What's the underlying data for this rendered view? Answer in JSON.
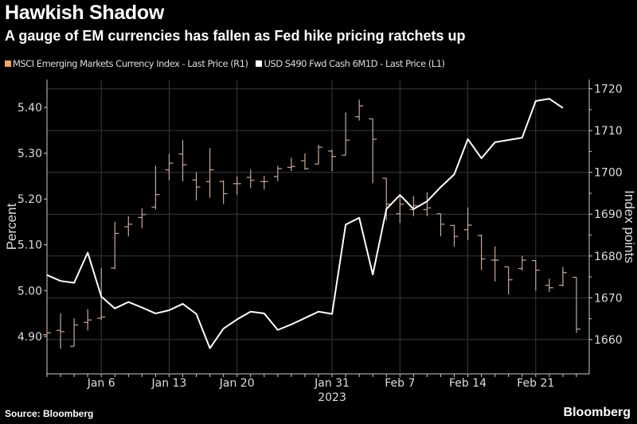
{
  "title": "Hawkish Shadow",
  "subtitle": "A gauge of EM currencies has fallen as Fed hike pricing ratchets up",
  "source": "Source: Bloomberg",
  "logo": "Bloomberg",
  "chart_data": {
    "type": "line",
    "xlabel": "2023",
    "x": [
      "Jan 2",
      "Jan 3",
      "Jan 4",
      "Jan 5",
      "Jan 6",
      "Jan 9",
      "Jan 10",
      "Jan 11",
      "Jan 12",
      "Jan 13",
      "Jan 16",
      "Jan 17",
      "Jan 18",
      "Jan 19",
      "Jan 20",
      "Jan 23",
      "Jan 24",
      "Jan 25",
      "Jan 26",
      "Jan 27",
      "Jan 30",
      "Jan 31",
      "Feb 1",
      "Feb 2",
      "Feb 3",
      "Feb 6",
      "Feb 7",
      "Feb 8",
      "Feb 9",
      "Feb 10",
      "Feb 13",
      "Feb 14",
      "Feb 15",
      "Feb 16",
      "Feb 17",
      "Feb 20",
      "Feb 21",
      "Feb 22",
      "Feb 23",
      "Feb 24"
    ],
    "x_tick_labels": [
      "Jan 6",
      "Jan 13",
      "Jan 20",
      "Jan 31",
      "Feb 7",
      "Feb 14",
      "Feb 21"
    ],
    "grid": true,
    "legend_placement": "top-left",
    "left_axis": {
      "label": "Percent",
      "ylim": [
        4.818,
        5.461
      ],
      "ticks": [
        "4.90",
        "5.00",
        "5.10",
        "5.20",
        "5.30",
        "5.40"
      ]
    },
    "right_axis": {
      "label": "Index points",
      "ylim": [
        1651.8,
        1722.2
      ],
      "ticks": [
        "1660",
        "1670",
        "1680",
        "1690",
        "1700",
        "1710",
        "1720"
      ]
    },
    "series": [
      {
        "name": "USD S490 Fwd Cash 6M1D - Last Price (L1)",
        "type": "line",
        "axis": "left",
        "color": "#ffffff",
        "values": [
          5.034,
          5.021,
          5.017,
          5.083,
          4.987,
          4.961,
          4.975,
          4.963,
          4.95,
          4.957,
          4.971,
          4.949,
          4.874,
          4.917,
          4.937,
          4.954,
          4.95,
          4.914,
          4.926,
          4.94,
          4.954,
          4.949,
          5.144,
          5.159,
          5.035,
          5.178,
          5.209,
          5.178,
          5.195,
          5.226,
          5.254,
          5.331,
          5.289,
          5.324,
          5.329,
          5.334,
          5.414,
          5.419,
          5.399,
          null
        ]
      },
      {
        "name": "MSCI Emerging Markets Currency Index - Last Price (R1)",
        "type": "ohlc",
        "axis": "right",
        "color": "#f0a860",
        "bar_color": "#c9a89a",
        "ohlc": [
          [
            1661.2,
            1665.7,
            1660.9,
            1661.6
          ],
          [
            1662.2,
            1666.3,
            1657.8,
            1661.9
          ],
          [
            1658.4,
            1665.1,
            1658.4,
            1663.5
          ],
          [
            1664.1,
            1667.3,
            1662.2,
            1664.7
          ],
          [
            1665.1,
            1677.1,
            1664.7,
            1665.4
          ],
          [
            1677.1,
            1688.2,
            1676.8,
            1685.4
          ],
          [
            1687.0,
            1689.5,
            1684.7,
            1687.6
          ],
          [
            1689.2,
            1691.4,
            1686.6,
            1689.9
          ],
          [
            1691.7,
            1701.6,
            1691.1,
            1694.7
          ],
          [
            1700.6,
            1704.4,
            1698.1,
            1702.2
          ],
          [
            1704.4,
            1707.7,
            1697.8,
            1701.8
          ],
          [
            1698.2,
            1700.0,
            1693.3,
            1696.5
          ],
          [
            1697.8,
            1705.8,
            1693.9,
            1700.6
          ],
          [
            1697.8,
            1698.1,
            1692.4,
            1694.9
          ],
          [
            1697.3,
            1699.0,
            1694.7,
            1697.3
          ],
          [
            1698.8,
            1700.7,
            1696.2,
            1698.1
          ],
          [
            1697.8,
            1699.2,
            1695.9,
            1697.8
          ],
          [
            1699.0,
            1701.6,
            1697.9,
            1700.9
          ],
          [
            1701.2,
            1703.5,
            1700.3,
            1701.4
          ],
          [
            1702.8,
            1704.5,
            1700.6,
            1700.9
          ],
          [
            1702.0,
            1706.6,
            1701.9,
            1706.0
          ],
          [
            1705.1,
            1705.4,
            1700.3,
            1703.8
          ],
          [
            1704.1,
            1714.3,
            1704.1,
            1707.7
          ],
          [
            1713.3,
            1717.4,
            1712.4,
            1715.9
          ],
          [
            1712.8,
            1712.8,
            1697.4,
            1707.9
          ],
          [
            1698.6,
            1698.6,
            1688.5,
            1692.4
          ],
          [
            1690.1,
            1694.3,
            1687.9,
            1692.4
          ],
          [
            1691.1,
            1694.3,
            1689.5,
            1692.0
          ],
          [
            1691.1,
            1695.2,
            1689.5,
            1691.5
          ],
          [
            1690.1,
            1690.1,
            1684.7,
            1687.6
          ],
          [
            1687.3,
            1687.4,
            1682.2,
            1684.7
          ],
          [
            1686.3,
            1691.6,
            1683.8,
            1687.4
          ],
          [
            1684.9,
            1685.1,
            1676.6,
            1679.3
          ],
          [
            1679.0,
            1682.3,
            1673.9,
            1679.0
          ],
          [
            1677.4,
            1677.4,
            1670.8,
            1674.3
          ],
          [
            1677.0,
            1680.0,
            1676.5,
            1679.0
          ],
          [
            1678.9,
            1679.0,
            1671.7,
            1676.6
          ],
          [
            1673.0,
            1674.6,
            1671.4,
            1672.4
          ],
          [
            1673.0,
            1677.4,
            1672.7,
            1676.0
          ],
          [
            1674.9,
            1674.9,
            1661.6,
            1662.5
          ]
        ]
      }
    ]
  }
}
